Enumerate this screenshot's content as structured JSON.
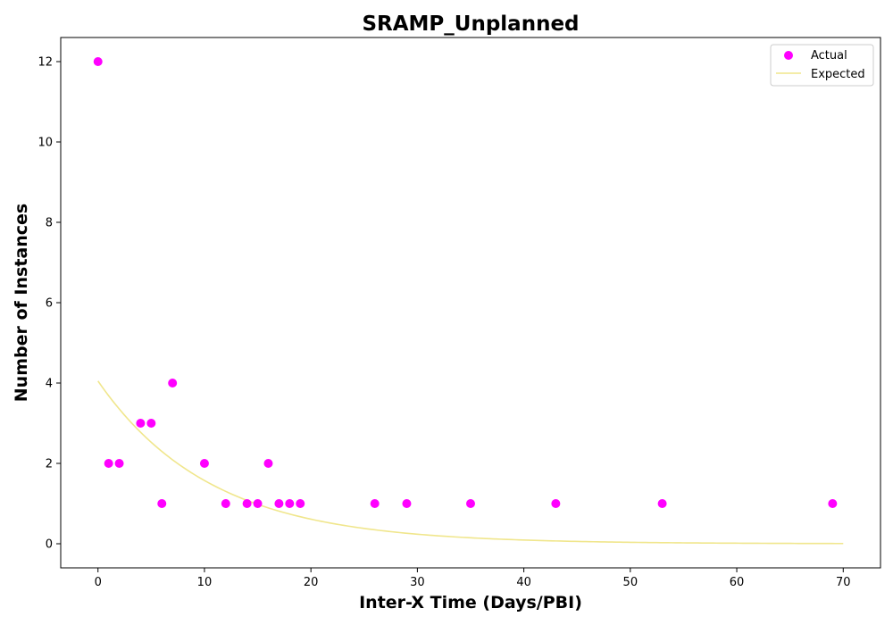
{
  "chart_data": {
    "type": "scatter",
    "title": "SRAMP_Unplanned",
    "xlabel": "Inter-X Time (Days/PBI)",
    "ylabel": "Number of Instances",
    "xlim": [
      -3.5,
      73.5
    ],
    "ylim": [
      -0.6,
      12.6
    ],
    "xticks": [
      0,
      10,
      20,
      30,
      40,
      50,
      60,
      70
    ],
    "yticks": [
      0,
      2,
      4,
      6,
      8,
      10,
      12
    ],
    "grid": false,
    "legend_position": "top-right",
    "series": [
      {
        "name": "Actual",
        "kind": "scatter",
        "color": "#ff00ff",
        "points": [
          [
            0,
            12
          ],
          [
            1,
            2
          ],
          [
            2,
            2
          ],
          [
            4,
            3
          ],
          [
            5,
            3
          ],
          [
            6,
            1
          ],
          [
            7,
            4
          ],
          [
            10,
            2
          ],
          [
            12,
            1
          ],
          [
            14,
            1
          ],
          [
            15,
            1
          ],
          [
            16,
            2
          ],
          [
            17,
            1
          ],
          [
            18,
            1
          ],
          [
            19,
            1
          ],
          [
            26,
            1
          ],
          [
            29,
            1
          ],
          [
            35,
            1
          ],
          [
            43,
            1
          ],
          [
            53,
            1
          ],
          [
            69,
            1
          ]
        ]
      },
      {
        "name": "Expected",
        "kind": "line",
        "color": "#f0e68c",
        "function": "exponential",
        "amplitude": 4.05,
        "rate": 0.0945,
        "x_range": [
          0,
          70
        ]
      }
    ]
  }
}
